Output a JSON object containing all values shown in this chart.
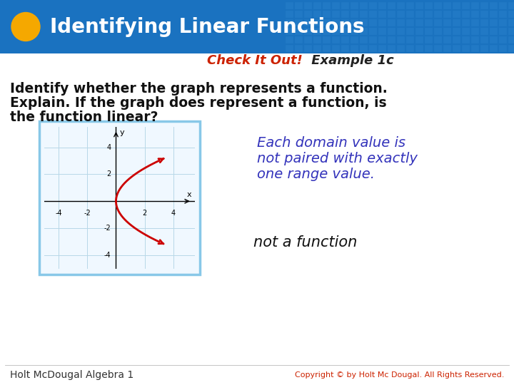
{
  "title": "Identifying Linear Functions",
  "header_bg_color": "#1a72c0",
  "header_text_color": "#ffffff",
  "header_font_size": 20,
  "orange_circle_color": "#f5a800",
  "body_bg_color": "#ffffff",
  "subheader_red": "#cc2200",
  "subheader_black": "#222222",
  "subheader_text1": "Check It Out!",
  "subheader_text2": " Example 1c",
  "body_line1": "Identify whether the graph represents a function.",
  "body_line2": "Explain. If the graph does represent a function, is",
  "body_line3": "the function linear?",
  "body_text_color": "#111111",
  "body_font_size": 13.5,
  "annotation_line1": "Each domain value is",
  "annotation_line2": "not paired with exactly",
  "annotation_line3": "one range value.",
  "annotation_color": "#3333bb",
  "annotation_font_size": 14,
  "answer_text": "not a function",
  "answer_color": "#111111",
  "answer_font_size": 14,
  "footer_text": "Holt McDougal Algebra 1",
  "footer_color": "#333333",
  "footer_font_size": 10,
  "copyright_text": "Copyright © by Holt Mc Dougal. All Rights Reserved.",
  "copyright_color": "#cc2200",
  "graph_border_color": "#88c8e8",
  "graph_grid_color": "#b8d8e8",
  "parabola_color": "#cc0000",
  "tile_color1": "#2a82cc",
  "tile_color2": "#1a72bb"
}
